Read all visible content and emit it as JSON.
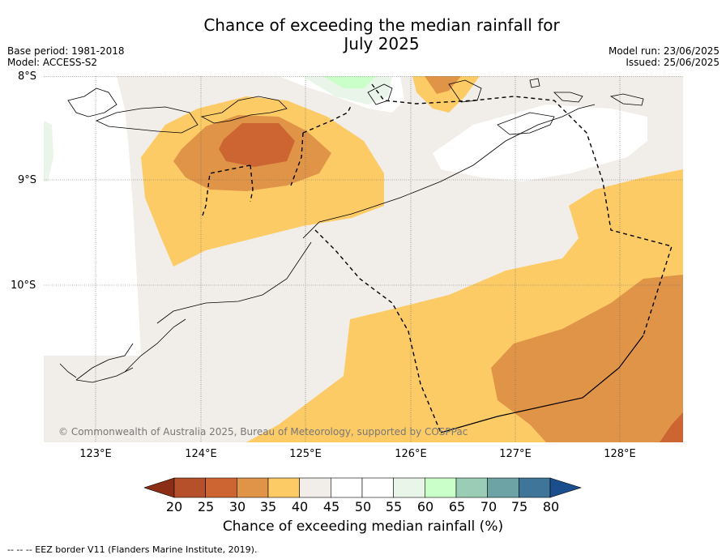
{
  "title_line1": "Chance of exceeding the median rainfall for",
  "title_line2": "July 2025",
  "base_period": "Base period: 1981-2018",
  "model": "Model: ACCESS-S2",
  "model_run": "Model run: 23/06/2025",
  "issued": "Issued: 25/06/2025",
  "lat_labels": [
    "8°S",
    "9°S",
    "10°S"
  ],
  "lon_labels": [
    "123°E",
    "124°E",
    "125°E",
    "126°E",
    "127°E",
    "128°E"
  ],
  "copyright": "© Commonwealth of Australia 2025, Bureau of Meteorology, supported by COSPPac",
  "colorbar": {
    "ticks": [
      "20",
      "25",
      "30",
      "35",
      "40",
      "45",
      "50",
      "55",
      "60",
      "65",
      "70",
      "75",
      "80"
    ],
    "label": "Chance of exceeding median rainfall (%)",
    "colors": [
      "#8c2d15",
      "#b5502a",
      "#cd6533",
      "#e09448",
      "#fdcb66",
      "#f1ede8",
      "#ffffff",
      "#ffffff",
      "#e8f5e8",
      "#caffca",
      "#9bccb5",
      "#6ea3a6",
      "#3e7598",
      "#1a4e8c"
    ]
  },
  "footer": "--  --  -- EEZ border V11 (Flanders Marine Institute, 2019)."
}
